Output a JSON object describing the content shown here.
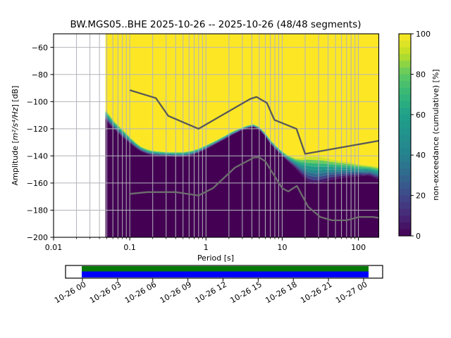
{
  "title": "BW.MGS05..BHE   2025-10-26 -- 2025-10-26  (48/48 segments)",
  "axes": {
    "xlabel": "Period [s]",
    "ylabel_prefix": "Amplitude [",
    "ylabel_math": "m²/s⁴/Hz",
    "ylabel_suffix": "] [dB]"
  },
  "chart_data": {
    "type": "heatmap",
    "title": "BW.MGS05..BHE   2025-10-26 -- 2025-10-26  (48/48 segments)",
    "x_axis": {
      "label": "Period [s]",
      "scale": "log",
      "min": 0.01,
      "max": 185,
      "major_ticks": [
        0.01,
        0.1,
        1,
        10,
        100
      ],
      "major_tick_labels": [
        "0.01",
        "0.1",
        "1",
        "10",
        "100"
      ]
    },
    "y_axis": {
      "label": "Amplitude [m²/s⁴/Hz] [dB]",
      "min": -200,
      "max": -50,
      "ticks": [
        -60,
        -80,
        -100,
        -120,
        -140,
        -160,
        -180,
        -200
      ],
      "tick_labels": [
        "−60",
        "−80",
        "−100",
        "−120",
        "−140",
        "−160",
        "−180",
        "−200"
      ]
    },
    "colorbar": {
      "label": "non-exceedance (cumulative) [%]",
      "min": 0,
      "max": 100,
      "ticks": [
        0,
        20,
        40,
        60,
        80,
        100
      ],
      "tick_labels": [
        "0",
        "20",
        "40",
        "60",
        "80",
        "100"
      ],
      "colormap": "viridis",
      "segments": 30
    },
    "data_period_range": [
      0.048,
      185
    ],
    "transition": {
      "comment": "cumulative PPSD: db_yellow_edge = level below which non-exceedance reaches 100%, db_purple_edge = level where it is 0%",
      "periods": [
        0.048,
        0.055,
        0.062,
        0.07,
        0.08,
        0.09,
        0.105,
        0.12,
        0.14,
        0.17,
        0.2,
        0.25,
        0.3,
        0.4,
        0.5,
        0.65,
        0.8,
        1.0,
        1.3,
        1.7,
        2.2,
        2.8,
        3.5,
        4.2,
        5.0,
        6.0,
        7.0,
        8.5,
        10,
        12,
        15,
        18,
        22,
        27,
        33,
        40,
        55,
        75,
        100,
        140,
        184
      ],
      "db_yellow_edge": [
        -106,
        -110,
        -114,
        -117,
        -120,
        -123,
        -127,
        -130,
        -133,
        -135,
        -136,
        -136.5,
        -137,
        -137,
        -137,
        -136,
        -134.5,
        -132,
        -129,
        -125.5,
        -122,
        -119.5,
        -117.5,
        -116.5,
        -118.5,
        -123,
        -128,
        -133,
        -136.5,
        -139.5,
        -141.5,
        -141.5,
        -140.5,
        -140.5,
        -141,
        -142,
        -143.5,
        -144.5,
        -146,
        -147,
        -148
      ],
      "db_purple_edge": [
        -113,
        -117,
        -120,
        -123,
        -126,
        -128.5,
        -131.5,
        -134,
        -136.5,
        -138.5,
        -139.5,
        -140,
        -140,
        -140.5,
        -140.5,
        -139.5,
        -137.5,
        -135,
        -131.5,
        -128,
        -124.5,
        -121.5,
        -119.5,
        -118.5,
        -120.5,
        -125.5,
        -131,
        -136,
        -140,
        -144,
        -149,
        -154,
        -159,
        -160.5,
        -159.5,
        -158,
        -156.5,
        -155.5,
        -155,
        -154.5,
        -157
      ]
    },
    "noise_models": {
      "nhnm": [
        [
          0.1,
          -91.5
        ],
        [
          0.22,
          -97.4
        ],
        [
          0.32,
          -110.5
        ],
        [
          0.8,
          -120.0
        ],
        [
          3.8,
          -98.0
        ],
        [
          4.6,
          -96.5
        ],
        [
          6.3,
          -101.0
        ],
        [
          7.9,
          -113.5
        ],
        [
          15.4,
          -120.0
        ],
        [
          20.0,
          -138.5
        ],
        [
          184,
          -128.9
        ]
      ],
      "nlnm": [
        [
          0.1,
          -168.0
        ],
        [
          0.17,
          -166.7
        ],
        [
          0.4,
          -166.7
        ],
        [
          0.8,
          -169.2
        ],
        [
          1.24,
          -163.7
        ],
        [
          2.4,
          -148.6
        ],
        [
          4.3,
          -141.1
        ],
        [
          5.0,
          -141.1
        ],
        [
          6.0,
          -144.0
        ],
        [
          10.0,
          -163.8
        ],
        [
          12.0,
          -166.2
        ],
        [
          15.6,
          -162.1
        ],
        [
          21.9,
          -177.5
        ],
        [
          31.6,
          -185.0
        ],
        [
          45.0,
          -187.5
        ],
        [
          70.0,
          -187.5
        ],
        [
          101.0,
          -185.0
        ],
        [
          154.0,
          -185.0
        ],
        [
          184.0,
          -185.6
        ]
      ]
    },
    "timeline": {
      "tick_labels": [
        "10-26 00",
        "10-26 03",
        "10-26 06",
        "10-26 09",
        "10-26 12",
        "10-26 15",
        "10-26 18",
        "10-26 21",
        "10-27 00"
      ],
      "coverage_rows": [
        {
          "name": "segments-used",
          "color": "#067a06"
        },
        {
          "name": "data-present",
          "color": "#0000ff"
        }
      ]
    },
    "colors": {
      "max_color": "#fde725",
      "min_color": "#440154",
      "grid": "#b3b3bb",
      "nhnm_line": "#595959",
      "nlnm_line": "#6e6e6e",
      "frame": "#000000"
    }
  }
}
